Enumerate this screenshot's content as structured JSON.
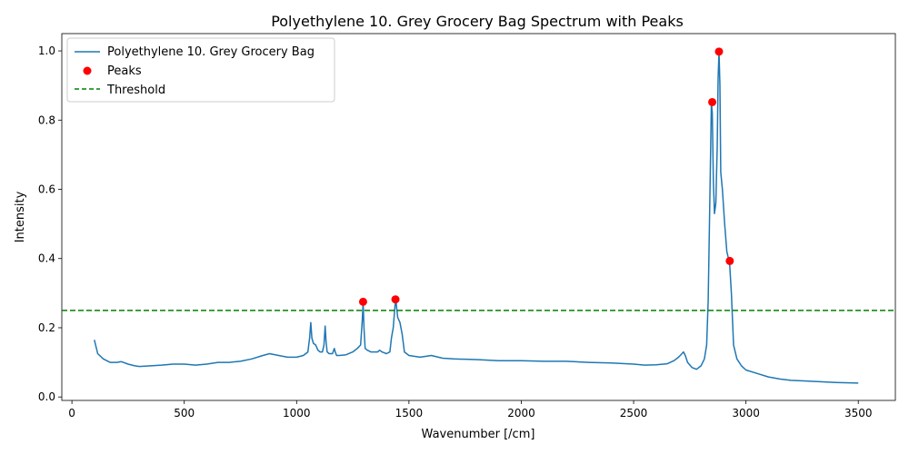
{
  "chart_data": {
    "type": "line",
    "title": "Polyethylene 10. Grey Grocery Bag Spectrum with Peaks",
    "xlabel": "Wavenumber [/cm]",
    "ylabel": "Intensity",
    "xlim": [
      -45,
      3665
    ],
    "ylim": [
      -0.01,
      1.05
    ],
    "xticks": [
      0,
      500,
      1000,
      1500,
      2000,
      2500,
      3000,
      3500
    ],
    "yticks": [
      0.0,
      0.2,
      0.4,
      0.6,
      0.8,
      1.0
    ],
    "xtick_labels": [
      "0",
      "500",
      "1000",
      "1500",
      "2000",
      "2500",
      "3000",
      "3500"
    ],
    "ytick_labels": [
      "0.0",
      "0.2",
      "0.4",
      "0.6",
      "0.8",
      "1.0"
    ],
    "grid": false,
    "legend_position": "top-left",
    "colors": {
      "spectrum": "#1f77b4",
      "peaks": "#ff0000",
      "threshold": "#008000"
    },
    "series": [
      {
        "name": "Polyethylene 10. Grey Grocery Bag",
        "style": "line",
        "x": [
          100,
          115,
          140,
          170,
          200,
          220,
          250,
          280,
          300,
          350,
          400,
          450,
          500,
          550,
          600,
          650,
          700,
          750,
          800,
          850,
          880,
          920,
          960,
          1000,
          1030,
          1050,
          1058,
          1063,
          1068,
          1075,
          1085,
          1095,
          1105,
          1115,
          1122,
          1127,
          1131,
          1136,
          1145,
          1160,
          1168,
          1172,
          1178,
          1190,
          1220,
          1250,
          1270,
          1285,
          1292,
          1296,
          1300,
          1305,
          1315,
          1330,
          1360,
          1370,
          1380,
          1400,
          1415,
          1422,
          1430,
          1438,
          1442,
          1450,
          1460,
          1470,
          1480,
          1500,
          1550,
          1600,
          1650,
          1700,
          1800,
          1900,
          2000,
          2100,
          2200,
          2300,
          2400,
          2500,
          2550,
          2600,
          2650,
          2680,
          2700,
          2715,
          2722,
          2730,
          2740,
          2760,
          2780,
          2800,
          2815,
          2825,
          2832,
          2840,
          2846,
          2850,
          2855,
          2860,
          2866,
          2872,
          2876,
          2880,
          2884,
          2888,
          2895,
          2905,
          2915,
          2922,
          2928,
          2935,
          2945,
          2960,
          2980,
          3000,
          3050,
          3100,
          3150,
          3200,
          3300,
          3400,
          3500
        ],
        "y": [
          0.165,
          0.125,
          0.11,
          0.1,
          0.1,
          0.102,
          0.095,
          0.09,
          0.088,
          0.09,
          0.092,
          0.095,
          0.095,
          0.092,
          0.095,
          0.1,
          0.1,
          0.103,
          0.11,
          0.12,
          0.125,
          0.12,
          0.115,
          0.115,
          0.12,
          0.13,
          0.17,
          0.215,
          0.17,
          0.155,
          0.15,
          0.135,
          0.13,
          0.13,
          0.15,
          0.205,
          0.16,
          0.13,
          0.125,
          0.125,
          0.14,
          0.13,
          0.12,
          0.12,
          0.122,
          0.13,
          0.14,
          0.15,
          0.22,
          0.275,
          0.2,
          0.14,
          0.135,
          0.13,
          0.13,
          0.135,
          0.13,
          0.125,
          0.13,
          0.17,
          0.2,
          0.265,
          0.28,
          0.23,
          0.215,
          0.18,
          0.13,
          0.12,
          0.115,
          0.12,
          0.112,
          0.11,
          0.108,
          0.105,
          0.105,
          0.103,
          0.103,
          0.1,
          0.098,
          0.095,
          0.092,
          0.093,
          0.096,
          0.105,
          0.115,
          0.125,
          0.13,
          0.12,
          0.1,
          0.085,
          0.08,
          0.09,
          0.11,
          0.15,
          0.28,
          0.6,
          0.85,
          0.82,
          0.62,
          0.53,
          0.56,
          0.72,
          0.92,
          0.998,
          0.9,
          0.65,
          0.6,
          0.5,
          0.42,
          0.4,
          0.38,
          0.3,
          0.15,
          0.11,
          0.09,
          0.078,
          0.068,
          0.058,
          0.052,
          0.048,
          0.045,
          0.042,
          0.04
        ]
      },
      {
        "name": "Peaks",
        "style": "scatter",
        "x": [
          1296,
          1440,
          2850,
          2880,
          2928
        ],
        "y": [
          0.275,
          0.282,
          0.852,
          0.998,
          0.393
        ]
      },
      {
        "name": "Threshold",
        "style": "dashed-hline",
        "y": 0.25
      }
    ]
  }
}
